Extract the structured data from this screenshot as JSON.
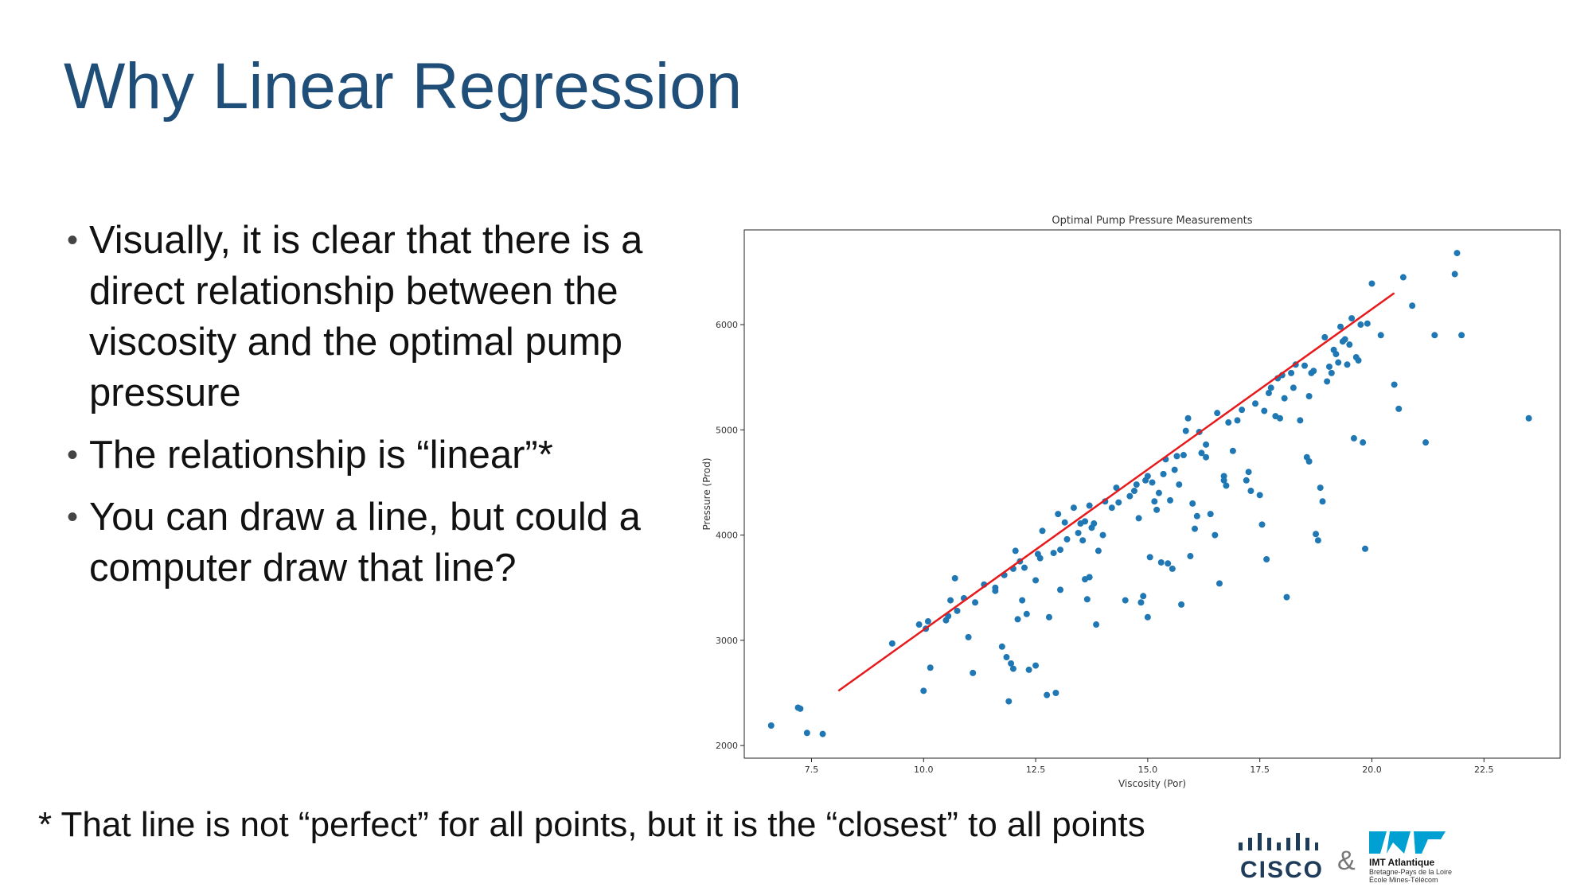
{
  "slide": {
    "title": "Why Linear Regression",
    "bullets": [
      "Visually, it is clear that there is a direct relationship between the viscosity and the optimal pump pressure",
      "The relationship is “linear”*",
      "You can draw a line, but could a computer draw that line?"
    ],
    "footnote": "* That line is not “perfect” for all points, but it is the “closest” to all points"
  },
  "logos": {
    "cisco_text": "CISCO",
    "ampersand": "&",
    "imt_name": "IMT Atlantique",
    "imt_sub1": "Bretagne-Pays de la Loire",
    "imt_sub2": "École Mines-Télécom"
  },
  "colors": {
    "title": "#1f4e79",
    "points": "#1f77b4",
    "fit_line": "#e8191b",
    "imt_accent": "#00a0d2"
  },
  "chart_data": {
    "type": "scatter",
    "title": "Optimal Pump Pressure Measurements",
    "xlabel": "Viscosity (Por)",
    "ylabel": "Pressure (Prod)",
    "xlim": [
      6.0,
      24.2
    ],
    "ylim": [
      1880,
      6900
    ],
    "xticks": [
      7.5,
      10.0,
      12.5,
      15.0,
      17.5,
      20.0,
      22.5
    ],
    "xtick_labels": [
      "7.5",
      "10.0",
      "12.5",
      "15.0",
      "17.5",
      "20.0",
      "22.5"
    ],
    "yticks": [
      2000,
      3000,
      4000,
      5000,
      6000
    ],
    "ytick_labels": [
      "2000",
      "3000",
      "4000",
      "5000",
      "6000"
    ],
    "grid": false,
    "fit_line": {
      "x": [
        8.1,
        20.5
      ],
      "y": [
        2520,
        6300
      ]
    },
    "points": [
      [
        6.6,
        2190
      ],
      [
        7.2,
        2360
      ],
      [
        7.25,
        2350
      ],
      [
        7.4,
        2120
      ],
      [
        7.75,
        2110
      ],
      [
        9.3,
        2970
      ],
      [
        9.9,
        3150
      ],
      [
        10.05,
        3110
      ],
      [
        10.1,
        3180
      ],
      [
        10.15,
        2740
      ],
      [
        10.0,
        2520
      ],
      [
        10.5,
        3190
      ],
      [
        10.55,
        3230
      ],
      [
        10.6,
        3380
      ],
      [
        10.7,
        3590
      ],
      [
        10.75,
        3280
      ],
      [
        10.9,
        3400
      ],
      [
        11.0,
        3030
      ],
      [
        11.1,
        2690
      ],
      [
        11.15,
        3360
      ],
      [
        11.35,
        3530
      ],
      [
        11.6,
        3470
      ],
      [
        11.6,
        3500
      ],
      [
        11.75,
        2940
      ],
      [
        11.8,
        3620
      ],
      [
        11.85,
        2840
      ],
      [
        11.9,
        2420
      ],
      [
        11.95,
        2780
      ],
      [
        12.0,
        3680
      ],
      [
        12.0,
        2730
      ],
      [
        12.05,
        3850
      ],
      [
        12.1,
        3200
      ],
      [
        12.15,
        3750
      ],
      [
        12.2,
        3380
      ],
      [
        12.25,
        3690
      ],
      [
        12.3,
        3250
      ],
      [
        12.35,
        2720
      ],
      [
        12.5,
        3570
      ],
      [
        12.5,
        2760
      ],
      [
        12.55,
        3820
      ],
      [
        12.6,
        3780
      ],
      [
        12.65,
        4040
      ],
      [
        12.75,
        2480
      ],
      [
        12.8,
        3220
      ],
      [
        12.9,
        3830
      ],
      [
        12.95,
        2500
      ],
      [
        13.0,
        4200
      ],
      [
        13.05,
        3480
      ],
      [
        13.05,
        3860
      ],
      [
        13.15,
        4120
      ],
      [
        13.2,
        3960
      ],
      [
        13.35,
        4260
      ],
      [
        13.45,
        4020
      ],
      [
        13.5,
        4110
      ],
      [
        13.55,
        3950
      ],
      [
        13.6,
        4130
      ],
      [
        13.6,
        3580
      ],
      [
        13.65,
        3390
      ],
      [
        13.7,
        4280
      ],
      [
        13.7,
        3600
      ],
      [
        13.75,
        4070
      ],
      [
        13.8,
        4110
      ],
      [
        13.85,
        3150
      ],
      [
        13.9,
        3850
      ],
      [
        14.0,
        4000
      ],
      [
        14.05,
        4320
      ],
      [
        14.2,
        4260
      ],
      [
        14.3,
        4450
      ],
      [
        14.35,
        4310
      ],
      [
        14.5,
        3380
      ],
      [
        14.6,
        4370
      ],
      [
        14.7,
        4420
      ],
      [
        14.75,
        4480
      ],
      [
        14.8,
        4160
      ],
      [
        14.85,
        3360
      ],
      [
        14.9,
        3420
      ],
      [
        14.95,
        4520
      ],
      [
        15.0,
        4560
      ],
      [
        15.0,
        3220
      ],
      [
        15.05,
        3790
      ],
      [
        15.1,
        4500
      ],
      [
        15.15,
        4320
      ],
      [
        15.2,
        4240
      ],
      [
        15.25,
        4400
      ],
      [
        15.3,
        3740
      ],
      [
        15.35,
        4580
      ],
      [
        15.4,
        4720
      ],
      [
        15.45,
        3730
      ],
      [
        15.5,
        4330
      ],
      [
        15.55,
        3680
      ],
      [
        15.6,
        4620
      ],
      [
        15.65,
        4750
      ],
      [
        15.7,
        4480
      ],
      [
        15.75,
        3340
      ],
      [
        15.8,
        4760
      ],
      [
        15.85,
        4990
      ],
      [
        15.9,
        5110
      ],
      [
        15.95,
        3800
      ],
      [
        16.0,
        4300
      ],
      [
        16.05,
        4060
      ],
      [
        16.1,
        4180
      ],
      [
        16.15,
        4980
      ],
      [
        16.2,
        4780
      ],
      [
        16.3,
        4740
      ],
      [
        16.3,
        4860
      ],
      [
        16.4,
        4200
      ],
      [
        16.5,
        4000
      ],
      [
        16.55,
        5160
      ],
      [
        16.6,
        3540
      ],
      [
        16.7,
        4560
      ],
      [
        16.7,
        4520
      ],
      [
        16.75,
        4470
      ],
      [
        16.8,
        5070
      ],
      [
        16.9,
        4800
      ],
      [
        17.0,
        5090
      ],
      [
        17.1,
        5190
      ],
      [
        17.2,
        4520
      ],
      [
        17.25,
        4600
      ],
      [
        17.3,
        4420
      ],
      [
        17.4,
        5250
      ],
      [
        17.5,
        4380
      ],
      [
        17.55,
        4100
      ],
      [
        17.6,
        5180
      ],
      [
        17.65,
        3770
      ],
      [
        17.7,
        5350
      ],
      [
        17.75,
        5400
      ],
      [
        17.85,
        5130
      ],
      [
        17.9,
        5490
      ],
      [
        17.95,
        5110
      ],
      [
        18.0,
        5520
      ],
      [
        18.05,
        5300
      ],
      [
        18.1,
        3410
      ],
      [
        18.2,
        5540
      ],
      [
        18.25,
        5400
      ],
      [
        18.3,
        5620
      ],
      [
        18.4,
        5090
      ],
      [
        18.5,
        5610
      ],
      [
        18.55,
        4740
      ],
      [
        18.6,
        4700
      ],
      [
        18.6,
        5320
      ],
      [
        18.65,
        5540
      ],
      [
        18.7,
        5560
      ],
      [
        18.75,
        4010
      ],
      [
        18.8,
        3950
      ],
      [
        18.85,
        4450
      ],
      [
        18.9,
        4320
      ],
      [
        18.95,
        5880
      ],
      [
        19.0,
        5460
      ],
      [
        19.05,
        5600
      ],
      [
        19.1,
        5540
      ],
      [
        19.15,
        5760
      ],
      [
        19.2,
        5720
      ],
      [
        19.25,
        5640
      ],
      [
        19.3,
        5980
      ],
      [
        19.35,
        5840
      ],
      [
        19.4,
        5860
      ],
      [
        19.45,
        5620
      ],
      [
        19.5,
        5810
      ],
      [
        19.55,
        6060
      ],
      [
        19.6,
        4920
      ],
      [
        19.65,
        5690
      ],
      [
        19.7,
        5660
      ],
      [
        19.75,
        6000
      ],
      [
        19.8,
        4880
      ],
      [
        19.85,
        3870
      ],
      [
        19.9,
        6010
      ],
      [
        20.0,
        6390
      ],
      [
        20.2,
        5900
      ],
      [
        20.5,
        5430
      ],
      [
        20.6,
        5200
      ],
      [
        20.7,
        6450
      ],
      [
        20.9,
        6180
      ],
      [
        21.2,
        4880
      ],
      [
        21.4,
        5900
      ],
      [
        21.85,
        6480
      ],
      [
        21.9,
        6680
      ],
      [
        22.0,
        5900
      ],
      [
        23.5,
        5110
      ]
    ]
  }
}
